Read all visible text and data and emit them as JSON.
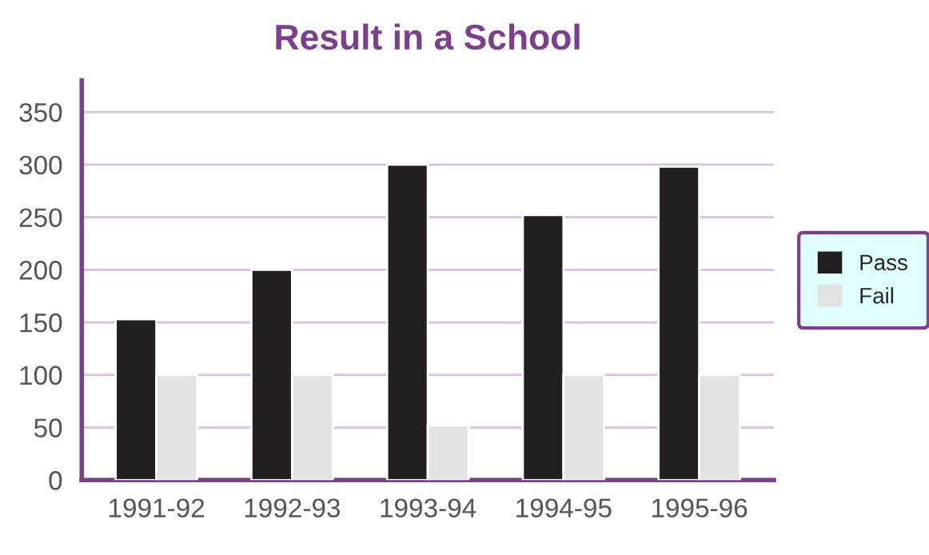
{
  "chart_data": {
    "type": "bar",
    "title": "Result in a School",
    "categories": [
      "1991-92",
      "1992-93",
      "1993-94",
      "1994-95",
      "1995-96"
    ],
    "series": [
      {
        "name": "Pass",
        "color": "#231f20",
        "values": [
          153,
          200,
          300,
          252,
          298
        ]
      },
      {
        "name": "Fail",
        "color": "#e3e3e3",
        "values": [
          100,
          100,
          52,
          100,
          100
        ]
      }
    ],
    "ylim": [
      0,
      380
    ],
    "yticks": [
      0,
      50,
      100,
      150,
      200,
      250,
      300,
      350
    ],
    "grid": "y",
    "legend": "right"
  }
}
